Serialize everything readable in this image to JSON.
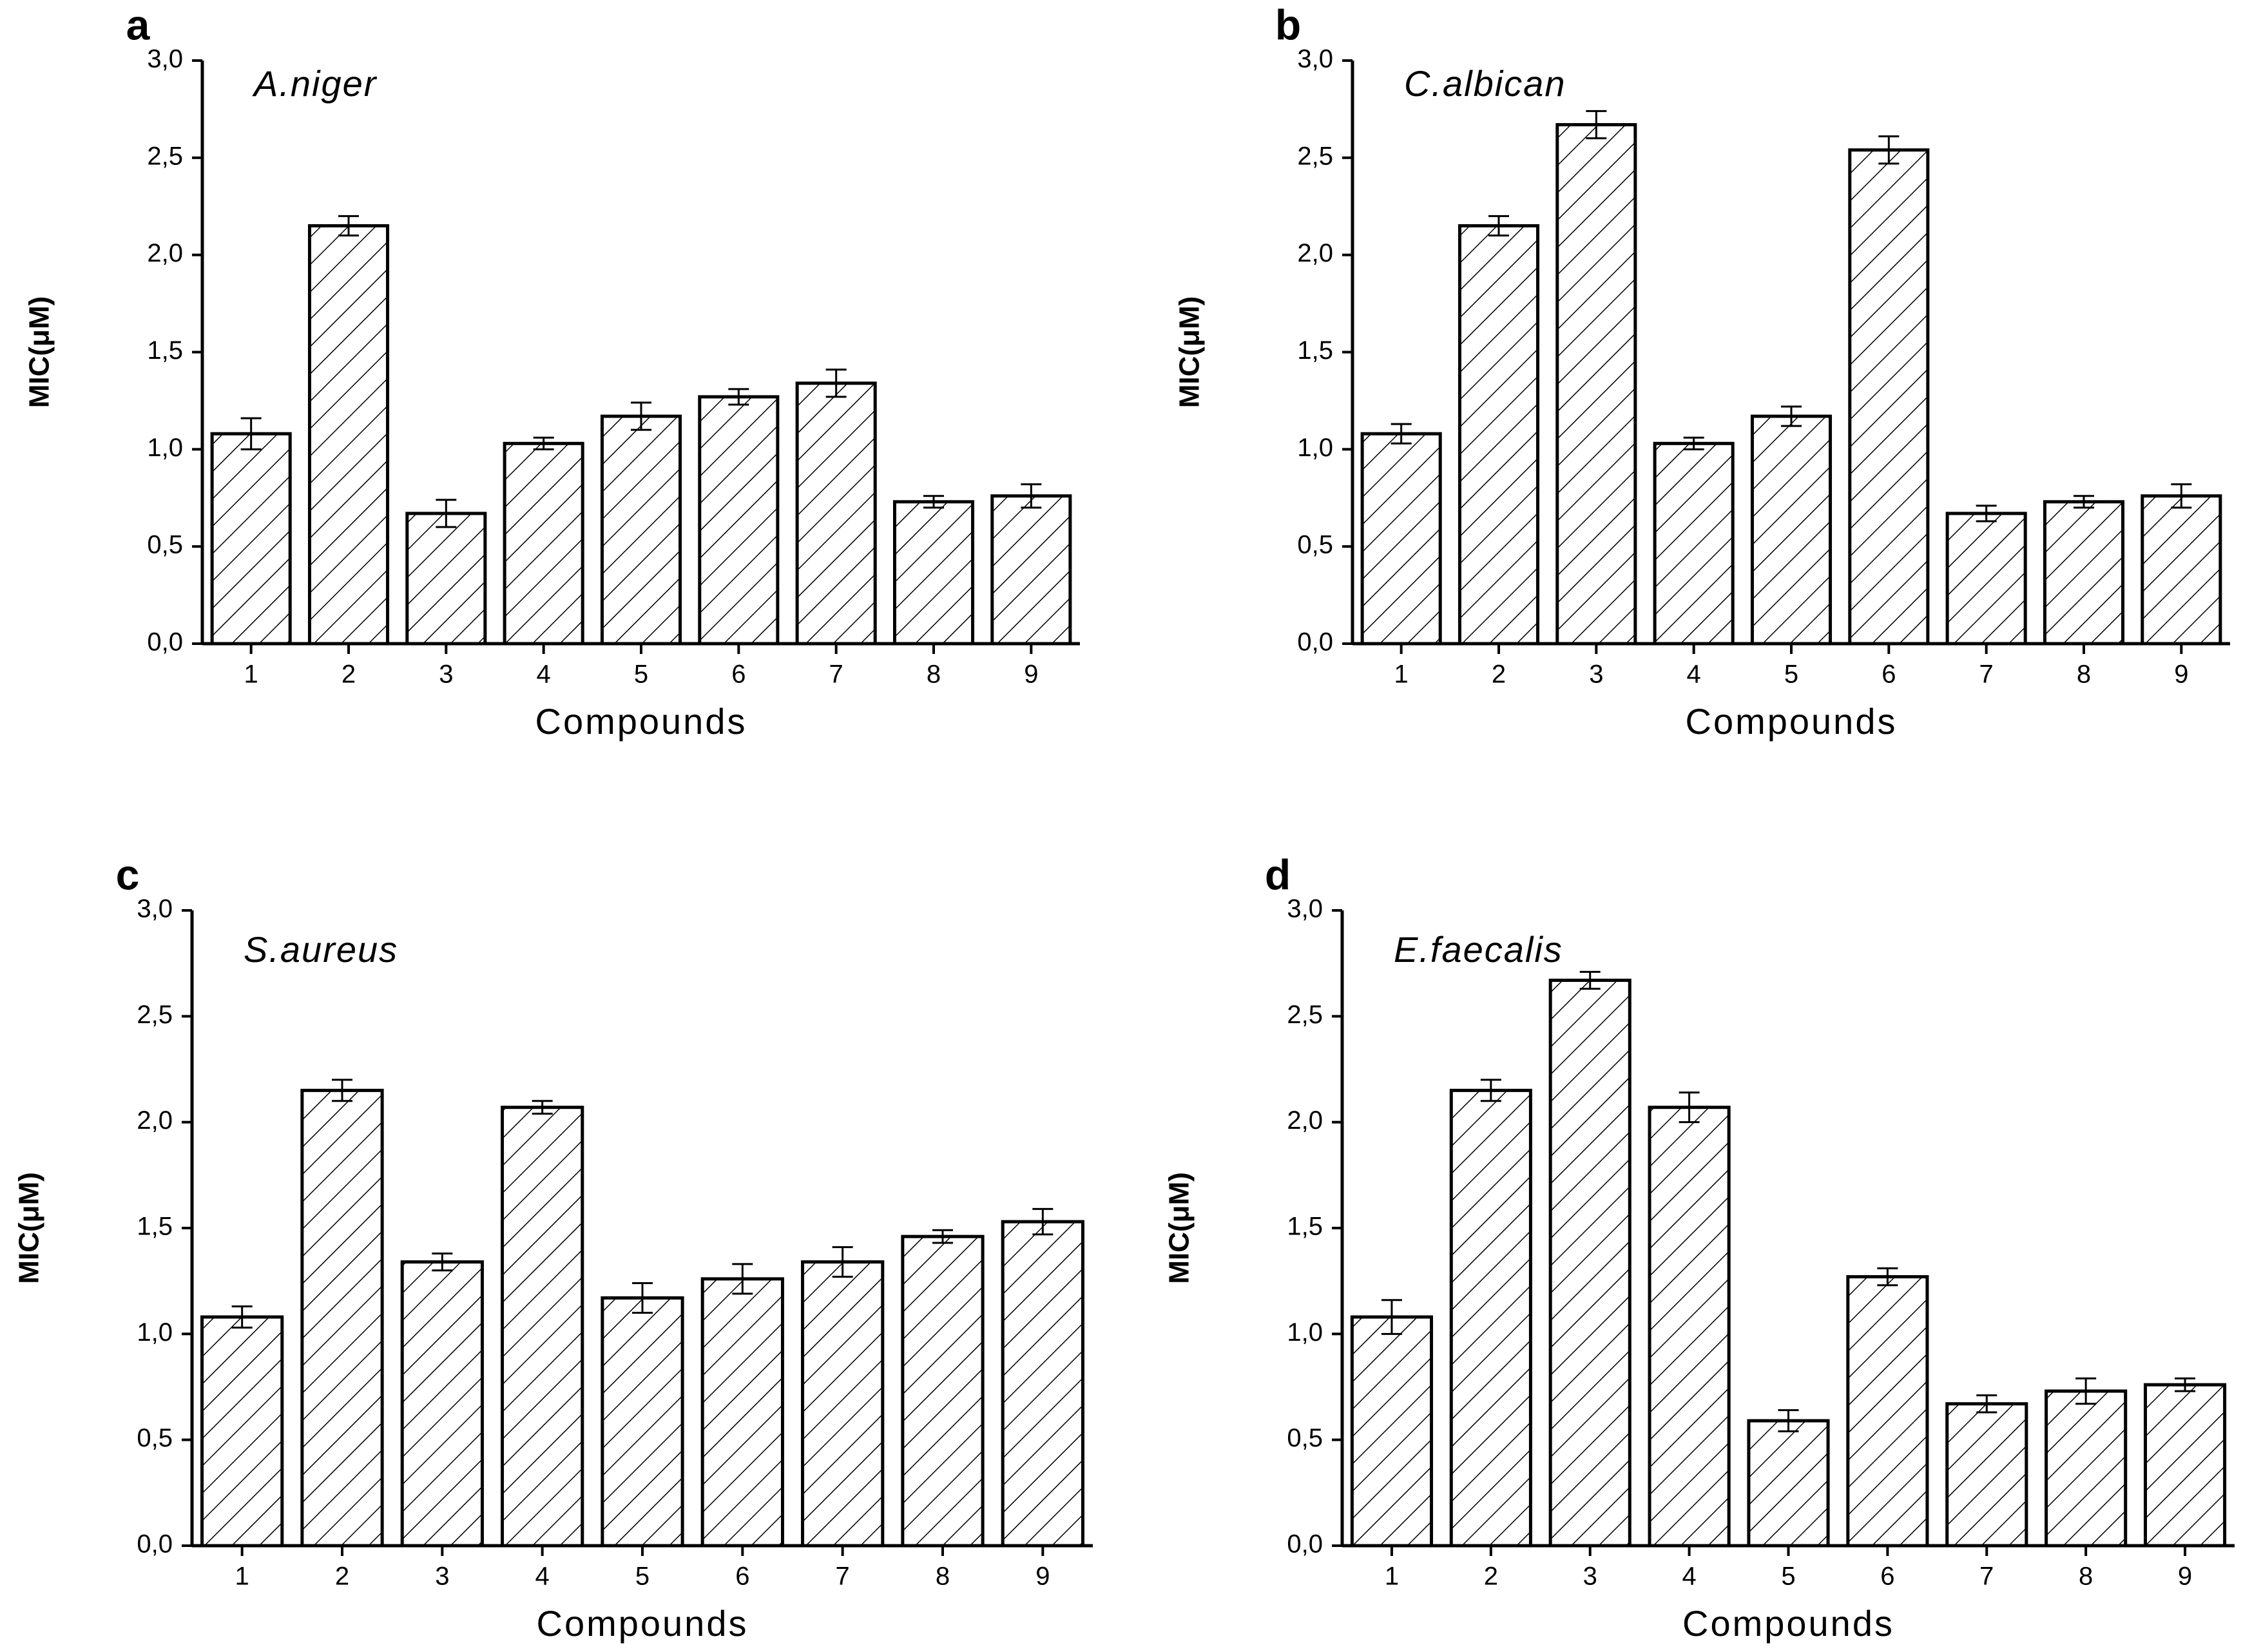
{
  "chart_data": [
    {
      "type": "bar",
      "panel_label": "a",
      "annotation": "A.niger",
      "y_label": "MIC(μM)",
      "x_label": "Compounds",
      "categories": [
        "1",
        "2",
        "3",
        "4",
        "5",
        "6",
        "7",
        "8",
        "9"
      ],
      "values": [
        1.08,
        2.15,
        0.67,
        1.03,
        1.17,
        1.27,
        1.34,
        0.73,
        0.76
      ],
      "errors": [
        0.08,
        0.05,
        0.07,
        0.03,
        0.07,
        0.04,
        0.07,
        0.03,
        0.06
      ],
      "color": "#000000",
      "ylim": [
        0,
        3
      ],
      "yticks": [
        {
          "value": 0,
          "label": "0,0"
        },
        {
          "value": 0.5,
          "label": "0,5"
        },
        {
          "value": 1,
          "label": "1,0"
        },
        {
          "value": 1.5,
          "label": "1,5"
        },
        {
          "value": 2,
          "label": "2,0"
        },
        {
          "value": 2.5,
          "label": "2,5"
        },
        {
          "value": 3,
          "label": "3,0"
        }
      ]
    },
    {
      "type": "bar",
      "panel_label": "b",
      "annotation": "C.albican",
      "y_label": "MIC(μM)",
      "x_label": "Compounds",
      "categories": [
        "1",
        "2",
        "3",
        "4",
        "5",
        "6",
        "7",
        "8",
        "9"
      ],
      "values": [
        1.08,
        2.15,
        2.67,
        1.03,
        1.17,
        2.54,
        0.67,
        0.73,
        0.76
      ],
      "errors": [
        0.05,
        0.05,
        0.07,
        0.03,
        0.05,
        0.07,
        0.04,
        0.03,
        0.06
      ],
      "color": "#000000",
      "ylim": [
        0,
        3
      ],
      "yticks": [
        {
          "value": 0,
          "label": "0,0"
        },
        {
          "value": 0.5,
          "label": "0,5"
        },
        {
          "value": 1,
          "label": "1,0"
        },
        {
          "value": 1.5,
          "label": "1,5"
        },
        {
          "value": 2,
          "label": "2,0"
        },
        {
          "value": 2.5,
          "label": "2,5"
        },
        {
          "value": 3,
          "label": "3,0"
        }
      ]
    },
    {
      "type": "bar",
      "panel_label": "c",
      "annotation": "S.aureus",
      "y_label": "MIC(μM)",
      "x_label": "Compounds",
      "categories": [
        "1",
        "2",
        "3",
        "4",
        "5",
        "6",
        "7",
        "8",
        "9"
      ],
      "values": [
        1.08,
        2.15,
        1.34,
        2.07,
        1.17,
        1.26,
        1.34,
        1.46,
        1.53
      ],
      "errors": [
        0.05,
        0.05,
        0.04,
        0.03,
        0.07,
        0.07,
        0.07,
        0.03,
        0.06
      ],
      "color": "#000000",
      "ylim": [
        0,
        3
      ],
      "yticks": [
        {
          "value": 0,
          "label": "0,0"
        },
        {
          "value": 0.5,
          "label": "0,5"
        },
        {
          "value": 1,
          "label": "1,0"
        },
        {
          "value": 1.5,
          "label": "1,5"
        },
        {
          "value": 2,
          "label": "2,0"
        },
        {
          "value": 2.5,
          "label": "2,5"
        },
        {
          "value": 3,
          "label": "3,0"
        }
      ]
    },
    {
      "type": "bar",
      "panel_label": "d",
      "annotation": "E.faecalis",
      "y_label": "MIC(μM)",
      "x_label": "Compounds",
      "categories": [
        "1",
        "2",
        "3",
        "4",
        "5",
        "6",
        "7",
        "8",
        "9"
      ],
      "values": [
        1.08,
        2.15,
        2.67,
        2.07,
        0.59,
        1.27,
        0.67,
        0.73,
        0.76
      ],
      "errors": [
        0.08,
        0.05,
        0.04,
        0.07,
        0.05,
        0.04,
        0.04,
        0.06,
        0.03
      ],
      "color": "#000000",
      "ylim": [
        0,
        3
      ],
      "yticks": [
        {
          "value": 0,
          "label": "0,0"
        },
        {
          "value": 0.5,
          "label": "0,5"
        },
        {
          "value": 1,
          "label": "1,0"
        },
        {
          "value": 1.5,
          "label": "1,5"
        },
        {
          "value": 2,
          "label": "2,0"
        },
        {
          "value": 2.5,
          "label": "2,5"
        },
        {
          "value": 3,
          "label": "3,0"
        }
      ]
    }
  ]
}
